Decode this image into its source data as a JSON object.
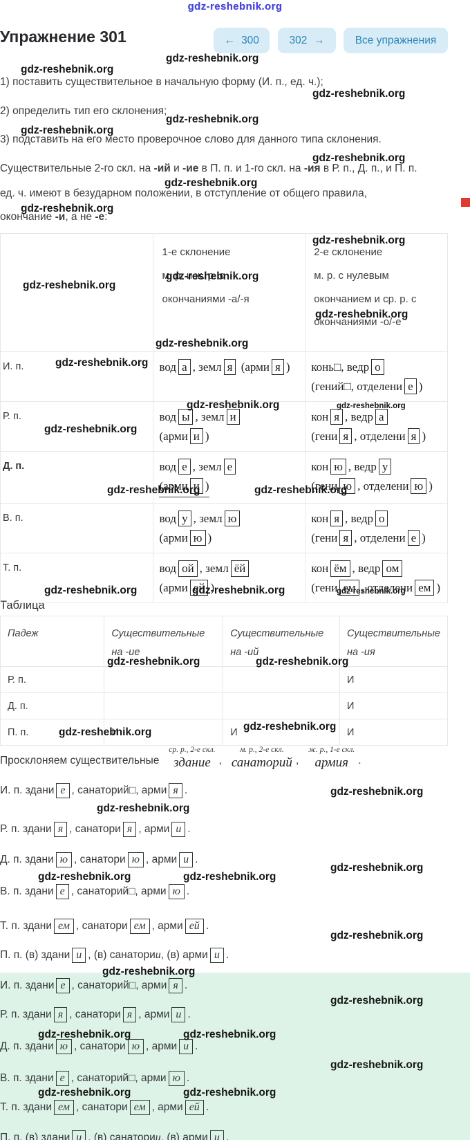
{
  "watermark": "gdz-reshebnik.org",
  "colors": {
    "button_bg": "#d7ecf7",
    "button_text": "#2e85b8",
    "highlight_green": "#def3e8",
    "watermark_blue": "#4545d8",
    "red_marker": "#e0392e"
  },
  "header": {
    "title": "Упражнение 301",
    "nav": {
      "prev_icon": "←",
      "prev_label": "300",
      "next_label": "302",
      "next_icon": "→",
      "all_label": "Все упражнения"
    }
  },
  "instructions": {
    "items": [
      "1) поставить существительное в начальную форму (И. п., ед. ч.);",
      "2) определить тип его склонения;",
      "3) подставить на его место проверочное слово для данного типа склонения."
    ]
  },
  "rule": {
    "line1": "Существительные 2-го скл. на *-ий* и *-ие* в П. п. и 1-го скл. на *-ия* в Р. п., Д. п., и П. п.",
    "line2": "ед. ч. имеют в безударном положении, в отступление от общего правила,",
    "line3": "окончание *-и*, а не *-е*:"
  },
  "table1": {
    "header": {
      "col1": "",
      "col2": "1-е склонение\nм. р. и ж. р. с\nокончаниями -а/-я",
      "col3": "2-е склонение\nм. р. с нулевым\nокончанием и ср. р. с\nокончаниями -о/-е"
    },
    "rows": [
      {
        "case": "И. п.",
        "col1": "вод[а], земл[я] (арми[я])",
        "col2": "конь□, ведр[о]\n(гений□, отделени[е])"
      },
      {
        "case": "Р. п.",
        "col1": "вод[ы], земл[и]\n(арми[и])",
        "col2": "кон[я], ведр[а]\n(гени[я], отделени[я])"
      },
      {
        "case": "Д. п.",
        "col1": "вод[е], земл[е]\n{(арми[и])}",
        "col2": "кон[ю], ведр[у]\n(гени[ю], отделени[ю])"
      },
      {
        "case": "В. п.",
        "col1": "вод[у], земл[ю]\n(арми[ю])",
        "col2": "кон[я], ведр[о]\n(гени[я], отделени[е])"
      },
      {
        "case": "Т. п.",
        "col1": "вод[ой], земл[ёй]\n(арми[ей])",
        "col2": "кон[ём], ведр[ом]\n(гени[ем], отделени[ем])"
      }
    ]
  },
  "table2": {
    "title": "Таблица",
    "headers": [
      "Падеж",
      "Существительные\nна -ие",
      "Существительные\nна -ий",
      "Существительные\nна -ия"
    ],
    "rows": [
      {
        "case": "Р. п.",
        "c1": "",
        "c2": "",
        "c3": "И"
      },
      {
        "case": "Д. п.",
        "c1": "",
        "c2": "",
        "c3": "И"
      },
      {
        "case": "П. п.",
        "c1": "И",
        "c2": "И",
        "c3": "И"
      }
    ]
  },
  "decline_sentence": {
    "lead": "Просклоняем существительные",
    "words": [
      {
        "note": "ср. р., 2-е скл.",
        "word": "здание",
        "sep": ","
      },
      {
        "note": "м. р., 2-е скл.",
        "word": "санаторий",
        "sep": ","
      },
      {
        "note": "ж. р., 1-е скл.",
        "word": "армия",
        "sep": "."
      }
    ]
  },
  "declension": [
    "И. п. здани[е], санаторий□, арми[я].",
    "Р. п. здани[я], санатори[я], арми[и].",
    "Д. п. здани[ю], санатори[ю], арми[и].",
    "В. п. здани[е], санаторий□, арми[ю].",
    "Т. п. здани[ем], санатори[ем], арми[ей].",
    "П. п. (в) здани[и], (в) санатори~и~, (в) арми[и]."
  ]
}
